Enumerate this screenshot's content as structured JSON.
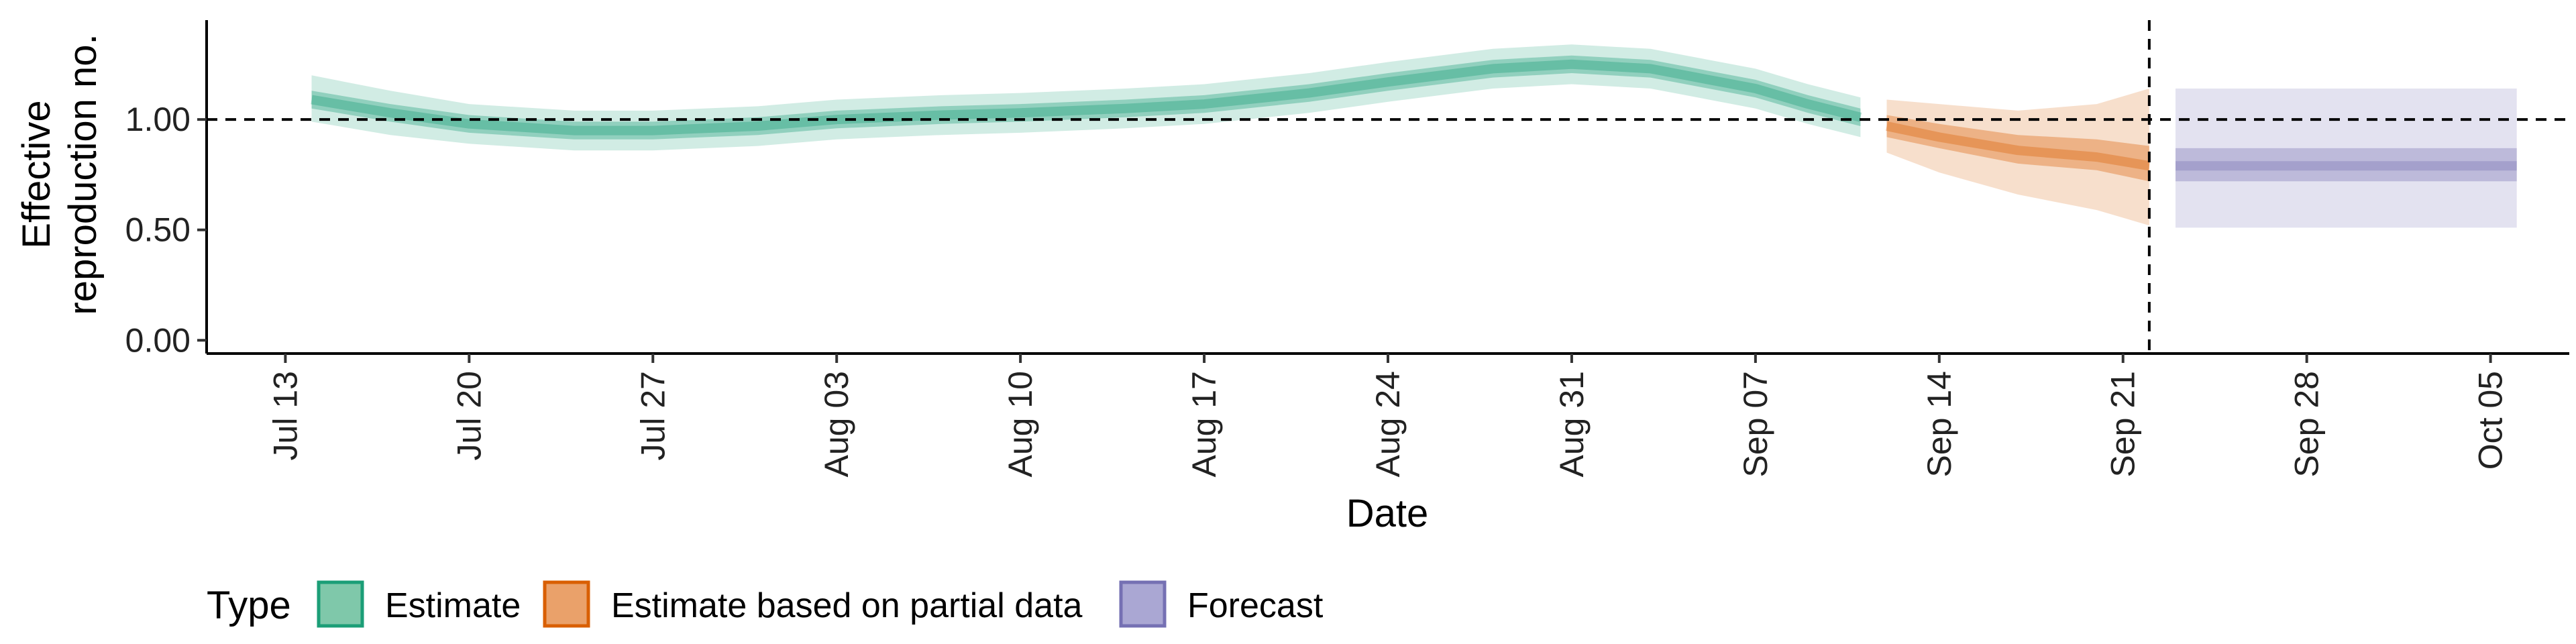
{
  "chart_data": {
    "type": "area",
    "xlabel": "Date",
    "ylabel_lines": [
      "Effective",
      "reproduction no."
    ],
    "x_range": [
      "2020-07-10",
      "2020-10-08"
    ],
    "ylim": [
      -0.06,
      1.45
    ],
    "y_ticks": [
      0,
      0.5,
      1,
      1.5
    ],
    "y_tick_labels": [
      "0.00",
      "0.50",
      "1.00"
    ],
    "x_ticks": [
      "2020-07-13",
      "2020-07-20",
      "2020-07-27",
      "2020-08-03",
      "2020-08-10",
      "2020-08-17",
      "2020-08-24",
      "2020-08-31",
      "2020-09-07",
      "2020-09-14",
      "2020-09-21",
      "2020-09-28",
      "2020-10-05"
    ],
    "x_tick_labels": [
      "Jul 13",
      "Jul 20",
      "Jul 27",
      "Aug 03",
      "Aug 10",
      "Aug 17",
      "Aug 24",
      "Aug 31",
      "Sep 07",
      "Sep 14",
      "Sep 21",
      "Sep 28",
      "Oct 05"
    ],
    "reference_lines": {
      "horizontal_y": 1.0,
      "vertical_date": "2020-09-22"
    },
    "grid": false,
    "legend": {
      "title": "Type",
      "position": "bottom-left",
      "entries": [
        {
          "label": "Estimate",
          "fill": "#7fc8aa",
          "stroke": "#1b9e77"
        },
        {
          "label": "Estimate based on partial data",
          "fill": "#eaa16a",
          "stroke": "#d95f02"
        },
        {
          "label": "Forecast",
          "fill": "#aaa7d3",
          "stroke": "#7570b3"
        }
      ]
    },
    "series": [
      {
        "name": "Estimate",
        "color": "#1b9e77",
        "points": [
          {
            "date": "2020-07-14",
            "median": 1.09,
            "lower_50": 1.05,
            "upper_50": 1.13,
            "lower_90": 0.99,
            "upper_90": 1.2
          },
          {
            "date": "2020-07-17",
            "median": 1.03,
            "lower_50": 0.99,
            "upper_50": 1.07,
            "lower_90": 0.93,
            "upper_90": 1.13
          },
          {
            "date": "2020-07-20",
            "median": 0.98,
            "lower_50": 0.94,
            "upper_50": 1.02,
            "lower_90": 0.89,
            "upper_90": 1.07
          },
          {
            "date": "2020-07-24",
            "median": 0.95,
            "lower_50": 0.91,
            "upper_50": 0.99,
            "lower_90": 0.86,
            "upper_90": 1.04
          },
          {
            "date": "2020-07-27",
            "median": 0.95,
            "lower_50": 0.91,
            "upper_50": 0.99,
            "lower_90": 0.86,
            "upper_90": 1.04
          },
          {
            "date": "2020-07-31",
            "median": 0.97,
            "lower_50": 0.93,
            "upper_50": 1.01,
            "lower_90": 0.88,
            "upper_90": 1.06
          },
          {
            "date": "2020-08-03",
            "median": 1.0,
            "lower_50": 0.96,
            "upper_50": 1.04,
            "lower_90": 0.91,
            "upper_90": 1.09
          },
          {
            "date": "2020-08-07",
            "median": 1.02,
            "lower_50": 0.98,
            "upper_50": 1.06,
            "lower_90": 0.93,
            "upper_90": 1.11
          },
          {
            "date": "2020-08-10",
            "median": 1.03,
            "lower_50": 0.99,
            "upper_50": 1.07,
            "lower_90": 0.94,
            "upper_90": 1.12
          },
          {
            "date": "2020-08-14",
            "median": 1.05,
            "lower_50": 1.01,
            "upper_50": 1.09,
            "lower_90": 0.96,
            "upper_90": 1.14
          },
          {
            "date": "2020-08-17",
            "median": 1.07,
            "lower_50": 1.03,
            "upper_50": 1.11,
            "lower_90": 0.98,
            "upper_90": 1.16
          },
          {
            "date": "2020-08-21",
            "median": 1.12,
            "lower_50": 1.08,
            "upper_50": 1.16,
            "lower_90": 1.03,
            "upper_90": 1.21
          },
          {
            "date": "2020-08-24",
            "median": 1.17,
            "lower_50": 1.13,
            "upper_50": 1.21,
            "lower_90": 1.08,
            "upper_90": 1.26
          },
          {
            "date": "2020-08-28",
            "median": 1.23,
            "lower_50": 1.19,
            "upper_50": 1.27,
            "lower_90": 1.14,
            "upper_90": 1.32
          },
          {
            "date": "2020-08-31",
            "median": 1.25,
            "lower_50": 1.21,
            "upper_50": 1.29,
            "lower_90": 1.16,
            "upper_90": 1.34
          },
          {
            "date": "2020-09-03",
            "median": 1.23,
            "lower_50": 1.19,
            "upper_50": 1.27,
            "lower_90": 1.14,
            "upper_90": 1.32
          },
          {
            "date": "2020-09-07",
            "median": 1.14,
            "lower_50": 1.1,
            "upper_50": 1.18,
            "lower_90": 1.05,
            "upper_90": 1.23
          },
          {
            "date": "2020-09-09",
            "median": 1.07,
            "lower_50": 1.03,
            "upper_50": 1.11,
            "lower_90": 0.98,
            "upper_90": 1.16
          },
          {
            "date": "2020-09-11",
            "median": 1.01,
            "lower_50": 0.97,
            "upper_50": 1.05,
            "lower_90": 0.92,
            "upper_90": 1.1
          }
        ]
      },
      {
        "name": "Estimate based on partial data",
        "color": "#d95f02",
        "points": [
          {
            "date": "2020-09-12",
            "median": 0.97,
            "lower_50": 0.92,
            "upper_50": 1.02,
            "lower_90": 0.85,
            "upper_90": 1.09
          },
          {
            "date": "2020-09-14",
            "median": 0.92,
            "lower_50": 0.87,
            "upper_50": 0.98,
            "lower_90": 0.76,
            "upper_90": 1.07
          },
          {
            "date": "2020-09-17",
            "median": 0.86,
            "lower_50": 0.8,
            "upper_50": 0.93,
            "lower_90": 0.66,
            "upper_90": 1.04
          },
          {
            "date": "2020-09-20",
            "median": 0.83,
            "lower_50": 0.77,
            "upper_50": 0.91,
            "lower_90": 0.59,
            "upper_90": 1.07
          },
          {
            "date": "2020-09-22",
            "median": 0.79,
            "lower_50": 0.72,
            "upper_50": 0.88,
            "lower_90": 0.52,
            "upper_90": 1.14
          }
        ]
      },
      {
        "name": "Forecast",
        "color": "#7570b3",
        "points": [
          {
            "date": "2020-09-23",
            "median": 0.79,
            "lower_50": 0.72,
            "upper_50": 0.87,
            "lower_90": 0.51,
            "upper_90": 1.14
          },
          {
            "date": "2020-10-06",
            "median": 0.79,
            "lower_50": 0.72,
            "upper_50": 0.87,
            "lower_90": 0.51,
            "upper_90": 1.14
          }
        ]
      }
    ]
  }
}
